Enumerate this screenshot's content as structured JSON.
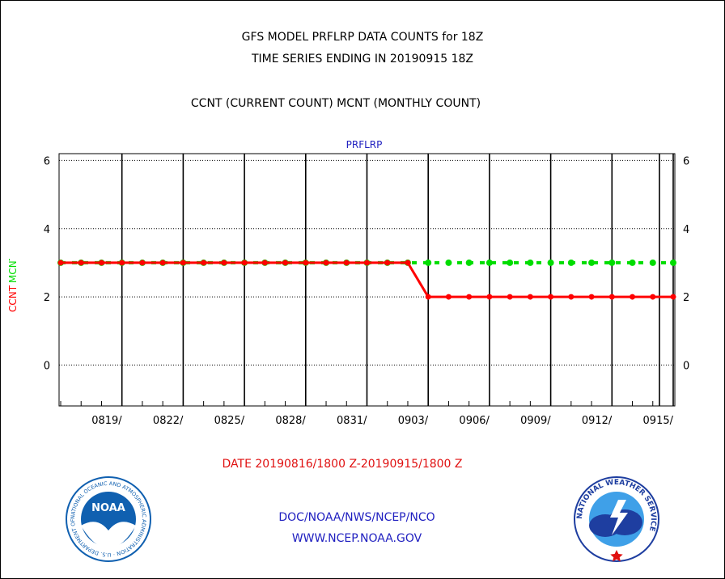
{
  "page": {
    "title_line1": "GFS MODEL PRFLRP DATA COUNTS for 18Z",
    "title_line2": "TIME SERIES ENDING IN 20190915 18Z",
    "title_line3": "CCNT (CURRENT COUNT) MCNT (MONTHLY COUNT)",
    "plot_label": "PRFLRP",
    "date_range": "DATE 20190816/1800 Z-20190915/1800 Z",
    "footer_line1": "DOC/NOAA/NWS/NCEP/NCO",
    "footer_line2": "WWW.NCEP.NOAA.GOV",
    "ylabel_ccnt": "CCNT",
    "ylabel_mcnt": "MCNT",
    "noaa_logo_text": "NOAA",
    "noaa_ring_text": "NATIONAL OCEANIC AND ATMOSPHERIC ADMINISTRATION · U.S. DEPARTMENT OF COMMERCE",
    "nws_ring_text": "NATIONAL WEATHER SERVICE"
  },
  "colors": {
    "ccnt": "#ff0000",
    "mcnt": "#00dd00",
    "label_blue": "#2020c0",
    "noaa_blue": "#1060b0",
    "nws_blue": "#1e3ea0"
  },
  "chart_data": {
    "type": "line",
    "x_start_day": "0816",
    "ylim": [
      -1.2,
      6.2
    ],
    "yticks": [
      0,
      2,
      4,
      6
    ],
    "xticks": [
      "0819/",
      "0822/",
      "0825/",
      "0828/",
      "0831/",
      "0903/",
      "0906/",
      "0909/",
      "0912/",
      "0915/"
    ],
    "xtick_day_index": [
      3,
      6,
      9,
      12,
      15,
      18,
      21,
      24,
      27,
      30
    ],
    "grid": true,
    "series": [
      {
        "name": "CCNT",
        "color": "#ff0000",
        "values": [
          3,
          3,
          3,
          3,
          3,
          3,
          3,
          3,
          3,
          3,
          3,
          3,
          3,
          3,
          3,
          3,
          3,
          3,
          2,
          2,
          2,
          2,
          2,
          2,
          2,
          2,
          2,
          2,
          2,
          2,
          2
        ]
      },
      {
        "name": "MCNT",
        "color": "#00dd00",
        "values": [
          3,
          3,
          3,
          3,
          3,
          3,
          3,
          3,
          3,
          3,
          3,
          3,
          3,
          3,
          3,
          3,
          3,
          3,
          3,
          3,
          3,
          3,
          3,
          3,
          3,
          3,
          3,
          3,
          3,
          3,
          3
        ]
      }
    ]
  }
}
